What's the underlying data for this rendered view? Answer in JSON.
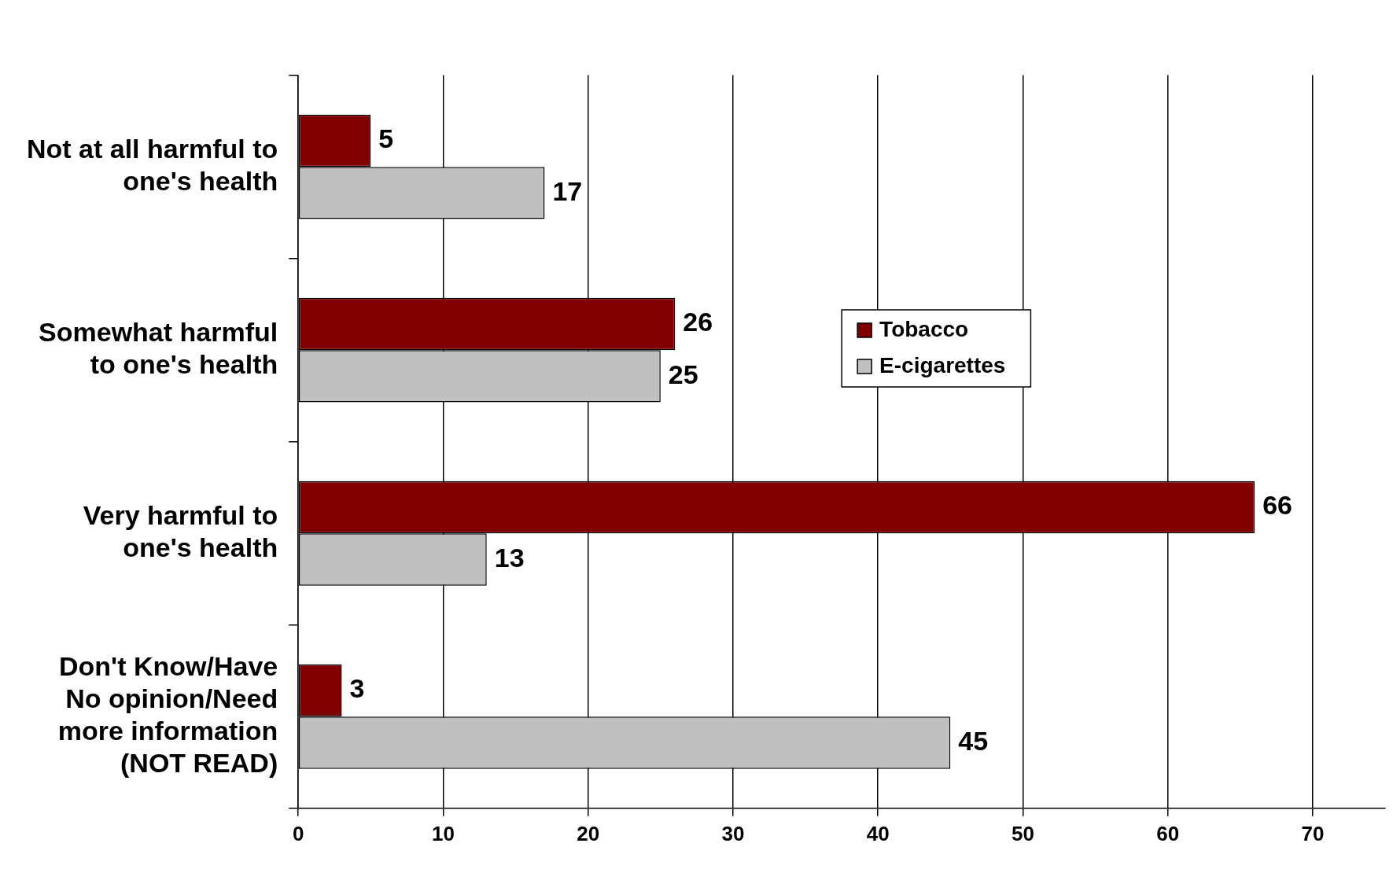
{
  "chart_data": {
    "type": "bar",
    "orientation": "horizontal",
    "categories": [
      "Not at all harmful to one's health",
      "Somewhat harmful to one's health",
      "Very harmful to one's health",
      "Don't Know/Have No opinion/Need more information (NOT READ)"
    ],
    "series": [
      {
        "name": "Tobacco",
        "color": "#800000",
        "values": [
          5,
          26,
          66,
          3
        ]
      },
      {
        "name": "E-cigarettes",
        "color": "#c0c0c0",
        "values": [
          17,
          25,
          13,
          45
        ]
      }
    ],
    "xlim": [
      0,
      75
    ],
    "xticks": [
      0,
      10,
      20,
      30,
      40,
      50,
      60,
      70
    ],
    "grid": "x",
    "legend": "right",
    "data_labels": true
  }
}
